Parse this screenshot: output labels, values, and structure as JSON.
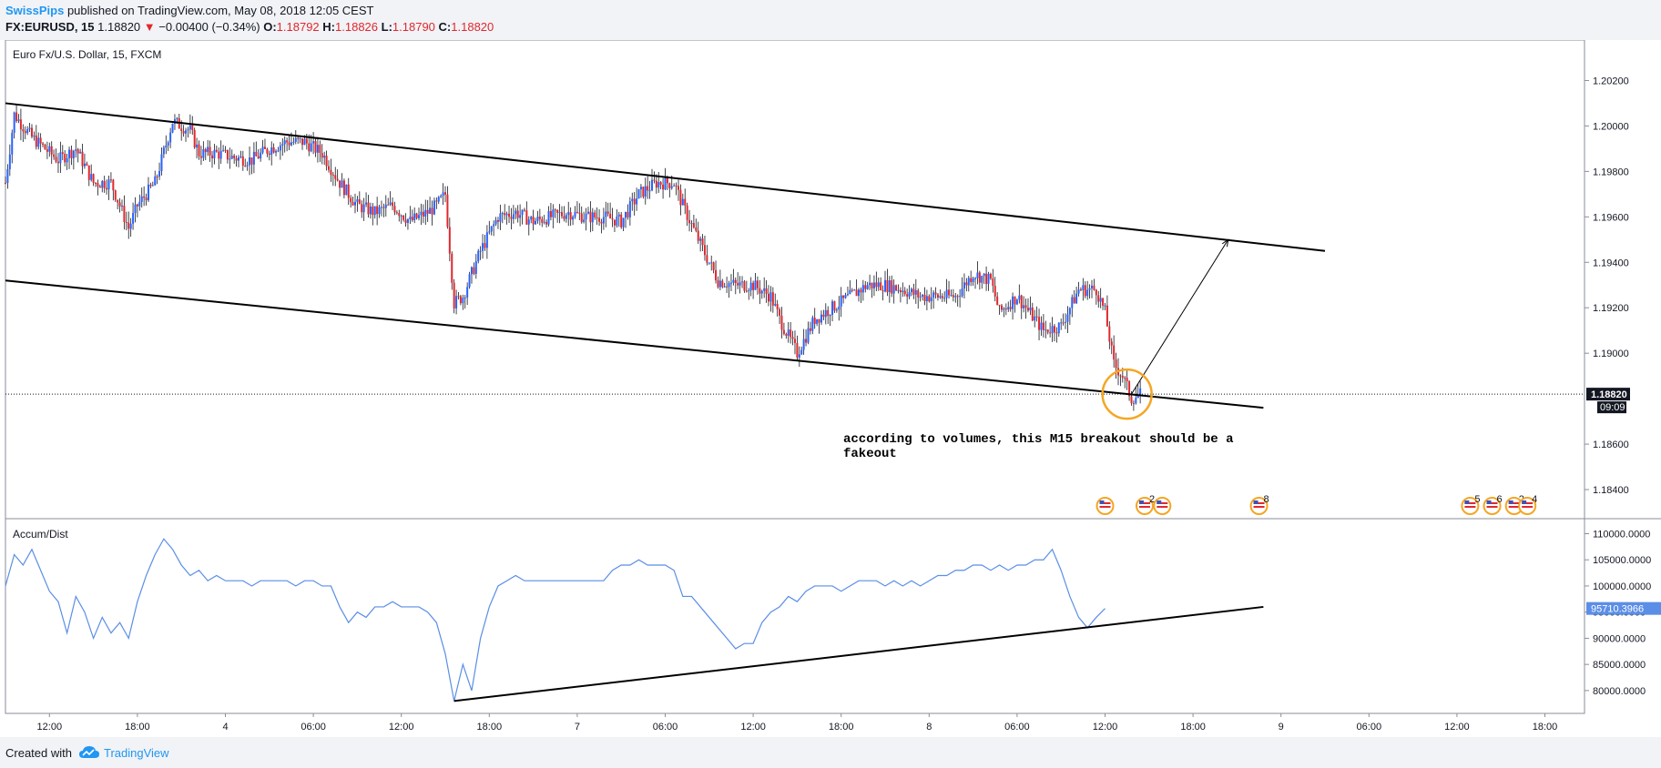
{
  "header": {
    "user": "SwissPips",
    "published": "published on TradingView.com, May 08, 2018 12:05 CEST",
    "symbol": "FX:EURUSD, 15",
    "last": "1.18820",
    "change_arrow": "▼",
    "change": "−0.00400 (−0.34%)",
    "o_label": "O:",
    "o": "1.18792",
    "h_label": "H:",
    "h": "1.18826",
    "l_label": "L:",
    "l": "1.18790",
    "c_label": "C:",
    "c": "1.18820"
  },
  "footer": {
    "created_with": "Created with",
    "brand": "TradingView",
    "logo_icon": "tradingview-cloud-icon"
  },
  "chart_data": [
    {
      "type": "candlestick",
      "title": "Euro Fx/U.S. Dollar, 15, FXCM",
      "y_ticks": [
        "1.20200",
        "1.20000",
        "1.19800",
        "1.19600",
        "1.19400",
        "1.19200",
        "1.19000",
        "1.18600",
        "1.18400"
      ],
      "ylim": [
        1.183,
        1.2035
      ],
      "last_price_label": "1.18820",
      "countdown_label": "09:09",
      "last_price": 1.1882,
      "price_path": [
        [
          0,
          1.1975
        ],
        [
          1,
          1.2005
        ],
        [
          3,
          1.1995
        ],
        [
          6,
          1.1985
        ],
        [
          8,
          1.199
        ],
        [
          10,
          1.1975
        ],
        [
          12,
          1.1975
        ],
        [
          14,
          1.1955
        ],
        [
          15,
          1.1965
        ],
        [
          17,
          1.1975
        ],
        [
          19,
          1.2002
        ],
        [
          21,
          1.1998
        ],
        [
          22,
          1.1988
        ],
        [
          24,
          1.1988
        ],
        [
          26,
          1.1986
        ],
        [
          28,
          1.1985
        ],
        [
          30,
          1.199
        ],
        [
          32,
          1.1993
        ],
        [
          34,
          1.1993
        ],
        [
          36,
          1.1988
        ],
        [
          38,
          1.1975
        ],
        [
          40,
          1.1965
        ],
        [
          42,
          1.1962
        ],
        [
          44,
          1.1965
        ],
        [
          46,
          1.1958
        ],
        [
          48,
          1.1962
        ],
        [
          49,
          1.1965
        ],
        [
          50,
          1.197
        ],
        [
          51,
          1.1922
        ],
        [
          52,
          1.1925
        ],
        [
          54,
          1.1945
        ],
        [
          56,
          1.196
        ],
        [
          58,
          1.1962
        ],
        [
          60,
          1.1958
        ],
        [
          62,
          1.196
        ],
        [
          64,
          1.1962
        ],
        [
          66,
          1.196
        ],
        [
          68,
          1.196
        ],
        [
          70,
          1.1958
        ],
        [
          72,
          1.197
        ],
        [
          74,
          1.1975
        ],
        [
          76,
          1.1975
        ],
        [
          77,
          1.1965
        ],
        [
          79,
          1.1948
        ],
        [
          81,
          1.1932
        ],
        [
          83,
          1.193
        ],
        [
          85,
          1.193
        ],
        [
          87,
          1.1925
        ],
        [
          88,
          1.1915
        ],
        [
          90,
          1.19
        ],
        [
          92,
          1.1915
        ],
        [
          94,
          1.192
        ],
        [
          96,
          1.1925
        ],
        [
          98,
          1.193
        ],
        [
          100,
          1.193
        ],
        [
          102,
          1.1928
        ],
        [
          104,
          1.1925
        ],
        [
          106,
          1.1925
        ],
        [
          108,
          1.1925
        ],
        [
          110,
          1.1935
        ],
        [
          112,
          1.1932
        ],
        [
          113,
          1.1918
        ],
        [
          115,
          1.1925
        ],
        [
          116,
          1.192
        ],
        [
          118,
          1.191
        ],
        [
          120,
          1.1912
        ],
        [
          122,
          1.1928
        ],
        [
          124,
          1.1928
        ],
        [
          125,
          1.1918
        ],
        [
          126,
          1.1895
        ],
        [
          127,
          1.189
        ],
        [
          128,
          1.188
        ],
        [
          129,
          1.1882
        ]
      ],
      "candle_colors": {
        "up": "#2962ff",
        "down": "#e0282e",
        "neutral_wick": "#131722"
      },
      "drawings": {
        "upper_trendline": [
          [
            1.201,
            0
          ],
          [
            1.1945,
            150
          ]
        ],
        "lower_trendline": [
          [
            1.1932,
            0
          ],
          [
            1.1876,
            143
          ]
        ],
        "projection_arrow_from": [
          1.1882,
          128
        ],
        "projection_arrow_to": [
          1.195,
          139
        ],
        "breakout_circle_at": [
          1.1882,
          127.5
        ],
        "circle_color": "#f5a623"
      },
      "annotation": [
        "according to volumes, this M15 breakout should be a",
        "fakeout"
      ],
      "event_badges": [
        {
          "time_idx": 125,
          "count": ""
        },
        {
          "time_idx": 129.5,
          "count": "2"
        },
        {
          "time_idx": 131.5,
          "count": ""
        },
        {
          "time_idx": 142.5,
          "count": "8"
        },
        {
          "time_idx": 166.5,
          "count": "5"
        },
        {
          "time_idx": 169,
          "count": "6"
        },
        {
          "time_idx": 171.5,
          "count": "2"
        },
        {
          "time_idx": 173,
          "count": "4"
        }
      ]
    },
    {
      "type": "line",
      "title": "Accum/Dist",
      "y_ticks": [
        "110000.0000",
        "105000.0000",
        "100000.0000",
        "95000.0000",
        "90000.0000",
        "85000.0000",
        "80000.0000"
      ],
      "ylim": [
        76500,
        112000
      ],
      "last_value_label": "95710.3966",
      "line_color": "#5b8ee6",
      "values": [
        [
          0,
          100000
        ],
        [
          1,
          106000
        ],
        [
          2,
          104000
        ],
        [
          3,
          107000
        ],
        [
          4,
          103000
        ],
        [
          5,
          99000
        ],
        [
          6,
          97000
        ],
        [
          7,
          91000
        ],
        [
          8,
          98000
        ],
        [
          9,
          95000
        ],
        [
          10,
          90000
        ],
        [
          11,
          94000
        ],
        [
          12,
          91000
        ],
        [
          13,
          93000
        ],
        [
          14,
          90000
        ],
        [
          15,
          97000
        ],
        [
          16,
          102000
        ],
        [
          17,
          106000
        ],
        [
          18,
          109000
        ],
        [
          19,
          107000
        ],
        [
          20,
          104000
        ],
        [
          21,
          102000
        ],
        [
          22,
          103000
        ],
        [
          23,
          101000
        ],
        [
          24,
          102000
        ],
        [
          25,
          101000
        ],
        [
          26,
          101000
        ],
        [
          27,
          101000
        ],
        [
          28,
          100000
        ],
        [
          29,
          101000
        ],
        [
          30,
          101000
        ],
        [
          31,
          101000
        ],
        [
          32,
          101000
        ],
        [
          33,
          100000
        ],
        [
          34,
          101000
        ],
        [
          35,
          101000
        ],
        [
          36,
          100000
        ],
        [
          37,
          100000
        ],
        [
          38,
          96000
        ],
        [
          39,
          93000
        ],
        [
          40,
          95000
        ],
        [
          41,
          94000
        ],
        [
          42,
          96000
        ],
        [
          43,
          96000
        ],
        [
          44,
          97000
        ],
        [
          45,
          96000
        ],
        [
          46,
          96000
        ],
        [
          47,
          96000
        ],
        [
          48,
          95000
        ],
        [
          49,
          93000
        ],
        [
          50,
          87000
        ],
        [
          51,
          78000
        ],
        [
          52,
          85000
        ],
        [
          53,
          80000
        ],
        [
          54,
          90000
        ],
        [
          55,
          96000
        ],
        [
          56,
          100000
        ],
        [
          57,
          101000
        ],
        [
          58,
          102000
        ],
        [
          59,
          101000
        ],
        [
          60,
          101000
        ],
        [
          61,
          101000
        ],
        [
          62,
          101000
        ],
        [
          63,
          101000
        ],
        [
          64,
          101000
        ],
        [
          65,
          101000
        ],
        [
          66,
          101000
        ],
        [
          67,
          101000
        ],
        [
          68,
          101000
        ],
        [
          69,
          103000
        ],
        [
          70,
          104000
        ],
        [
          71,
          104000
        ],
        [
          72,
          105000
        ],
        [
          73,
          104000
        ],
        [
          74,
          104000
        ],
        [
          75,
          104000
        ],
        [
          76,
          103000
        ],
        [
          77,
          98000
        ],
        [
          78,
          98000
        ],
        [
          79,
          96000
        ],
        [
          80,
          94000
        ],
        [
          81,
          92000
        ],
        [
          82,
          90000
        ],
        [
          83,
          88000
        ],
        [
          84,
          89000
        ],
        [
          85,
          89000
        ],
        [
          86,
          93000
        ],
        [
          87,
          95000
        ],
        [
          88,
          96000
        ],
        [
          89,
          98000
        ],
        [
          90,
          97000
        ],
        [
          91,
          99000
        ],
        [
          92,
          100000
        ],
        [
          93,
          100000
        ],
        [
          94,
          100000
        ],
        [
          95,
          99000
        ],
        [
          96,
          100000
        ],
        [
          97,
          101000
        ],
        [
          98,
          101000
        ],
        [
          99,
          101000
        ],
        [
          100,
          100000
        ],
        [
          101,
          101000
        ],
        [
          102,
          100000
        ],
        [
          103,
          101000
        ],
        [
          104,
          100000
        ],
        [
          105,
          101000
        ],
        [
          106,
          102000
        ],
        [
          107,
          102000
        ],
        [
          108,
          103000
        ],
        [
          109,
          103000
        ],
        [
          110,
          104000
        ],
        [
          111,
          104000
        ],
        [
          112,
          103000
        ],
        [
          113,
          104000
        ],
        [
          114,
          103000
        ],
        [
          115,
          104000
        ],
        [
          116,
          104000
        ],
        [
          117,
          105000
        ],
        [
          118,
          105000
        ],
        [
          119,
          107000
        ],
        [
          120,
          103000
        ],
        [
          121,
          98000
        ],
        [
          122,
          94000
        ],
        [
          123,
          92000
        ],
        [
          124,
          94000
        ],
        [
          125,
          95700
        ]
      ],
      "drawings": {
        "support_trendline": [
          [
            78000,
            51
          ],
          [
            96000,
            143
          ]
        ]
      }
    }
  ],
  "time_axis": {
    "labels": [
      {
        "text": "12:00",
        "idx": 5
      },
      {
        "text": "18:00",
        "idx": 15
      },
      {
        "text": "4",
        "idx": 25
      },
      {
        "text": "06:00",
        "idx": 35
      },
      {
        "text": "12:00",
        "idx": 45
      },
      {
        "text": "18:00",
        "idx": 55
      },
      {
        "text": "7",
        "idx": 65
      },
      {
        "text": "06:00",
        "idx": 75
      },
      {
        "text": "12:00",
        "idx": 85
      },
      {
        "text": "18:00",
        "idx": 95
      },
      {
        "text": "8",
        "idx": 105
      },
      {
        "text": "06:00",
        "idx": 115
      },
      {
        "text": "12:00",
        "idx": 125
      },
      {
        "text": "18:00",
        "idx": 135
      },
      {
        "text": "9",
        "idx": 145
      },
      {
        "text": "06:00",
        "idx": 155
      },
      {
        "text": "12:00",
        "idx": 165
      },
      {
        "text": "18:00",
        "idx": 175
      }
    ]
  }
}
